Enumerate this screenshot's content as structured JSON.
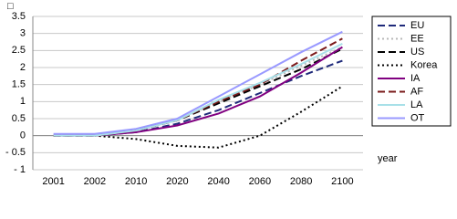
{
  "chart_data": {
    "type": "line",
    "ylabel": "□",
    "xlabel": "year",
    "categories": [
      "2001",
      "2002",
      "2010",
      "2020",
      "2040",
      "2060",
      "2080",
      "2100"
    ],
    "ylim": [
      -1,
      3.5
    ],
    "yticks": [
      {
        "value": -1,
        "label": "- 1"
      },
      {
        "value": -0.5,
        "label": "- 0.5"
      },
      0,
      0.5,
      1,
      1.5,
      2,
      2.5,
      3,
      3.5
    ],
    "grid": true,
    "legend": "right",
    "series": [
      {
        "name": "EU",
        "color": "#1f2a7a",
        "line_style": "dashed",
        "values": [
          0,
          0,
          0.1,
          0.35,
          0.75,
          1.25,
          1.75,
          2.2
        ]
      },
      {
        "name": "EE",
        "color": "#b8b8b8",
        "line_style": "dotted",
        "values": [
          0,
          0,
          0.15,
          0.45,
          1.0,
          1.5,
          2.05,
          2.6
        ]
      },
      {
        "name": "US",
        "color": "#000000",
        "line_style": "dashed",
        "values": [
          0,
          0,
          0.15,
          0.45,
          0.95,
          1.45,
          1.95,
          2.55
        ]
      },
      {
        "name": "Korea",
        "color": "#000000",
        "line_style": "dotted",
        "values": [
          0,
          0,
          -0.1,
          -0.3,
          -0.35,
          0,
          0.7,
          1.45
        ]
      },
      {
        "name": "IA",
        "color": "#800080",
        "line_style": "solid",
        "values": [
          0,
          0,
          0.1,
          0.3,
          0.65,
          1.15,
          1.85,
          2.6
        ]
      },
      {
        "name": "AF",
        "color": "#7a1a1a",
        "line_style": "dashed",
        "values": [
          0,
          0,
          0.15,
          0.45,
          1.0,
          1.5,
          2.2,
          2.85
        ]
      },
      {
        "name": "LA",
        "color": "#a8e0e8",
        "line_style": "solid",
        "values": [
          0,
          0,
          0.15,
          0.45,
          1.05,
          1.55,
          2.1,
          2.7
        ]
      },
      {
        "name": "OT",
        "color": "#9999ff",
        "line_style": "solid",
        "values": [
          0.05,
          0.05,
          0.2,
          0.5,
          1.15,
          1.8,
          2.45,
          3.05
        ]
      }
    ]
  }
}
